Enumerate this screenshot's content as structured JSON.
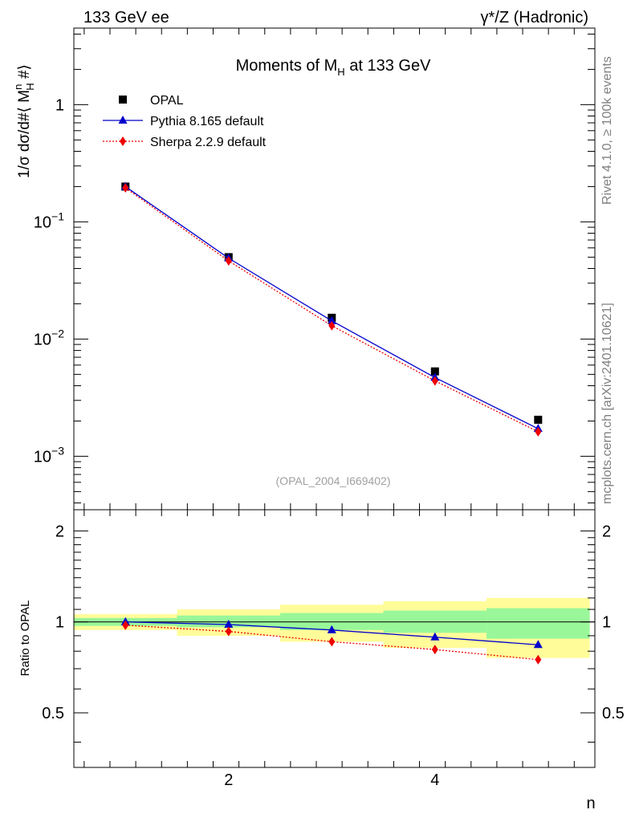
{
  "header": {
    "left": "133 GeV ee",
    "right": "γ*/Z (Hadronic)"
  },
  "side_text": {
    "rivet": "Rivet 4.1.0, ≥ 100k events",
    "mcplots": "mcplots.cern.ch [arXiv:2401.10621]"
  },
  "chart_data": [
    {
      "type": "line",
      "panel": "main",
      "title": "Moments of M_H at 133 GeV",
      "title_parts": {
        "main": "Moments of M",
        "sub": "H",
        "rest": " at 133 GeV"
      },
      "ylabel": "1/σ  dσ/d#⟨ M_H^n #⟩",
      "ylabel_parts": {
        "a": "1/σ  dσ/d#⟨ M",
        "sup": "n",
        "sub": "H",
        "b": " #⟩"
      },
      "yscale": "log",
      "ylim": [
        0.00035,
        4.5
      ],
      "xlim": [
        0.5,
        5.55
      ],
      "grid": false,
      "y_tick_labels": [
        {
          "value": 1,
          "base": "1",
          "exp": ""
        },
        {
          "value": 0.1,
          "base": "10",
          "exp": "−1"
        },
        {
          "value": 0.01,
          "base": "10",
          "exp": "−2"
        },
        {
          "value": 0.001,
          "base": "10",
          "exp": "−3"
        }
      ],
      "legend_position": "top-left",
      "watermark": "(OPAL_2004_I669402)",
      "series": [
        {
          "name": "OPAL",
          "style": "square-marker",
          "color": "#000000",
          "x": [
            1,
            2,
            3,
            4,
            5
          ],
          "y": [
            0.2,
            0.05,
            0.0152,
            0.0053,
            0.00205
          ]
        },
        {
          "name": "Pythia 8.165 default",
          "style": "solid-triangle",
          "color": "#0000cc",
          "x": [
            1,
            2,
            3,
            4,
            5
          ],
          "y": [
            0.2,
            0.049,
            0.0143,
            0.0047,
            0.00172
          ]
        },
        {
          "name": "Sherpa 2.2.9 default",
          "style": "dotted-diamond",
          "color": "#ee0000",
          "x": [
            1,
            2,
            3,
            4,
            5
          ],
          "y": [
            0.195,
            0.0465,
            0.013,
            0.0044,
            0.00162
          ]
        }
      ]
    },
    {
      "type": "line",
      "panel": "ratio",
      "ylabel": "Ratio to OPAL",
      "xlabel": "n",
      "ylim": [
        0.33,
        2.35
      ],
      "xlim": [
        0.5,
        5.55
      ],
      "x_tick_labels": [
        2,
        4
      ],
      "y_tick_labels": [
        "2",
        "1",
        "0.5"
      ],
      "y_tick_values": [
        2,
        1,
        0.5
      ],
      "reference": 1,
      "bands": {
        "bin_edges": [
          0.5,
          1.5,
          2.5,
          3.5,
          4.5,
          5.5
        ],
        "green_low": [
          0.97,
          0.96,
          0.94,
          0.92,
          0.88
        ],
        "green_high": [
          1.03,
          1.05,
          1.07,
          1.09,
          1.11
        ],
        "yellow_low": [
          0.94,
          0.9,
          0.86,
          0.82,
          0.76
        ],
        "yellow_high": [
          1.06,
          1.1,
          1.14,
          1.17,
          1.2
        ],
        "green_color": "#99f799",
        "yellow_color": "#fffc99"
      },
      "series": [
        {
          "name": "Pythia 8.165 default",
          "color": "#0000cc",
          "x": [
            1,
            2,
            3,
            4,
            5
          ],
          "y": [
            1.0,
            0.98,
            0.94,
            0.89,
            0.84
          ]
        },
        {
          "name": "Sherpa 2.2.9 default",
          "color": "#ee0000",
          "x": [
            1,
            2,
            3,
            4,
            5
          ],
          "y": [
            0.975,
            0.93,
            0.86,
            0.81,
            0.75
          ]
        }
      ]
    }
  ]
}
